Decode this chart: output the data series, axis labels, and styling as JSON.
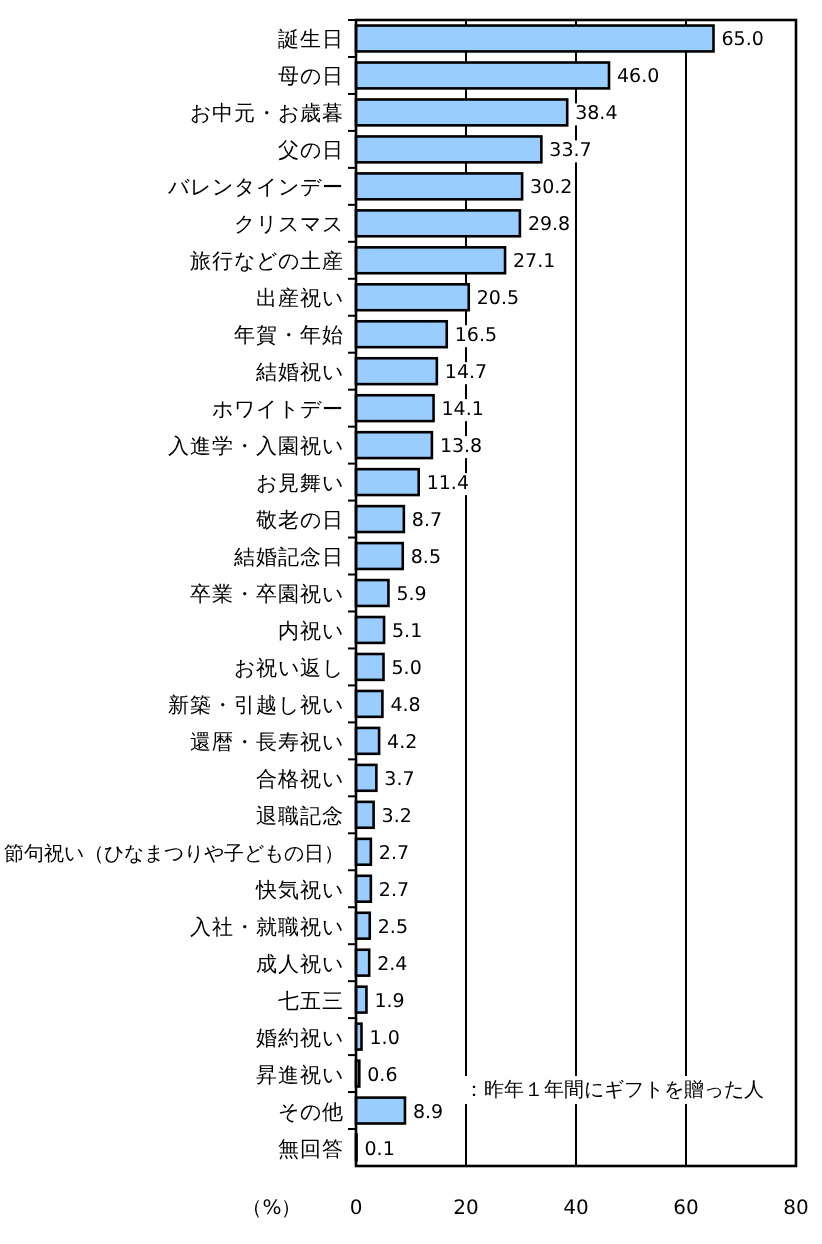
{
  "chart_data": {
    "type": "bar",
    "orientation": "horizontal",
    "xlabel": "（%）",
    "categories": [
      "誕生日",
      "母の日",
      "お中元・お歳暮",
      "父の日",
      "バレンタインデー",
      "クリスマス",
      "旅行などの土産",
      "出産祝い",
      "年賀・年始",
      "結婚祝い",
      "ホワイトデー",
      "入進学・入園祝い",
      "お見舞い",
      "敬老の日",
      "結婚記念日",
      "卒業・卒園祝い",
      "内祝い",
      "お祝い返し",
      "新築・引越し祝い",
      "還暦・長寿祝い",
      "合格祝い",
      "退職記念",
      "節句祝い（ひなまつりや子どもの日）",
      "快気祝い",
      "入社・就職祝い",
      "成人祝い",
      "七五三",
      "婚約祝い",
      "昇進祝い",
      "その他",
      "無回答"
    ],
    "values": [
      65.0,
      46.0,
      38.4,
      33.7,
      30.2,
      29.8,
      27.1,
      20.5,
      16.5,
      14.7,
      14.1,
      13.8,
      11.4,
      8.7,
      8.5,
      5.9,
      5.1,
      5.0,
      4.8,
      4.2,
      3.7,
      3.2,
      2.7,
      2.7,
      2.5,
      2.4,
      1.9,
      1.0,
      0.6,
      8.9,
      0.1
    ],
    "value_labels": [
      "65.0",
      "46.0",
      "38.4",
      "33.7",
      "30.2",
      "29.8",
      "27.1",
      "20.5",
      "16.5",
      "14.7",
      "14.1",
      "13.8",
      "11.4",
      "8.7",
      "8.5",
      "5.9",
      "5.1",
      "5.0",
      "4.8",
      "4.2",
      "3.7",
      "3.2",
      "2.7",
      "2.7",
      "2.5",
      "2.4",
      "1.9",
      "1.0",
      "0.6",
      "8.9",
      "0.1"
    ],
    "color": "#99ccff",
    "xlim": [
      0,
      80
    ],
    "xticks": [
      0,
      20,
      40,
      60,
      80
    ],
    "grid": "x",
    "annotations": [
      "：昨年１年間にギフトを贈った人"
    ]
  }
}
